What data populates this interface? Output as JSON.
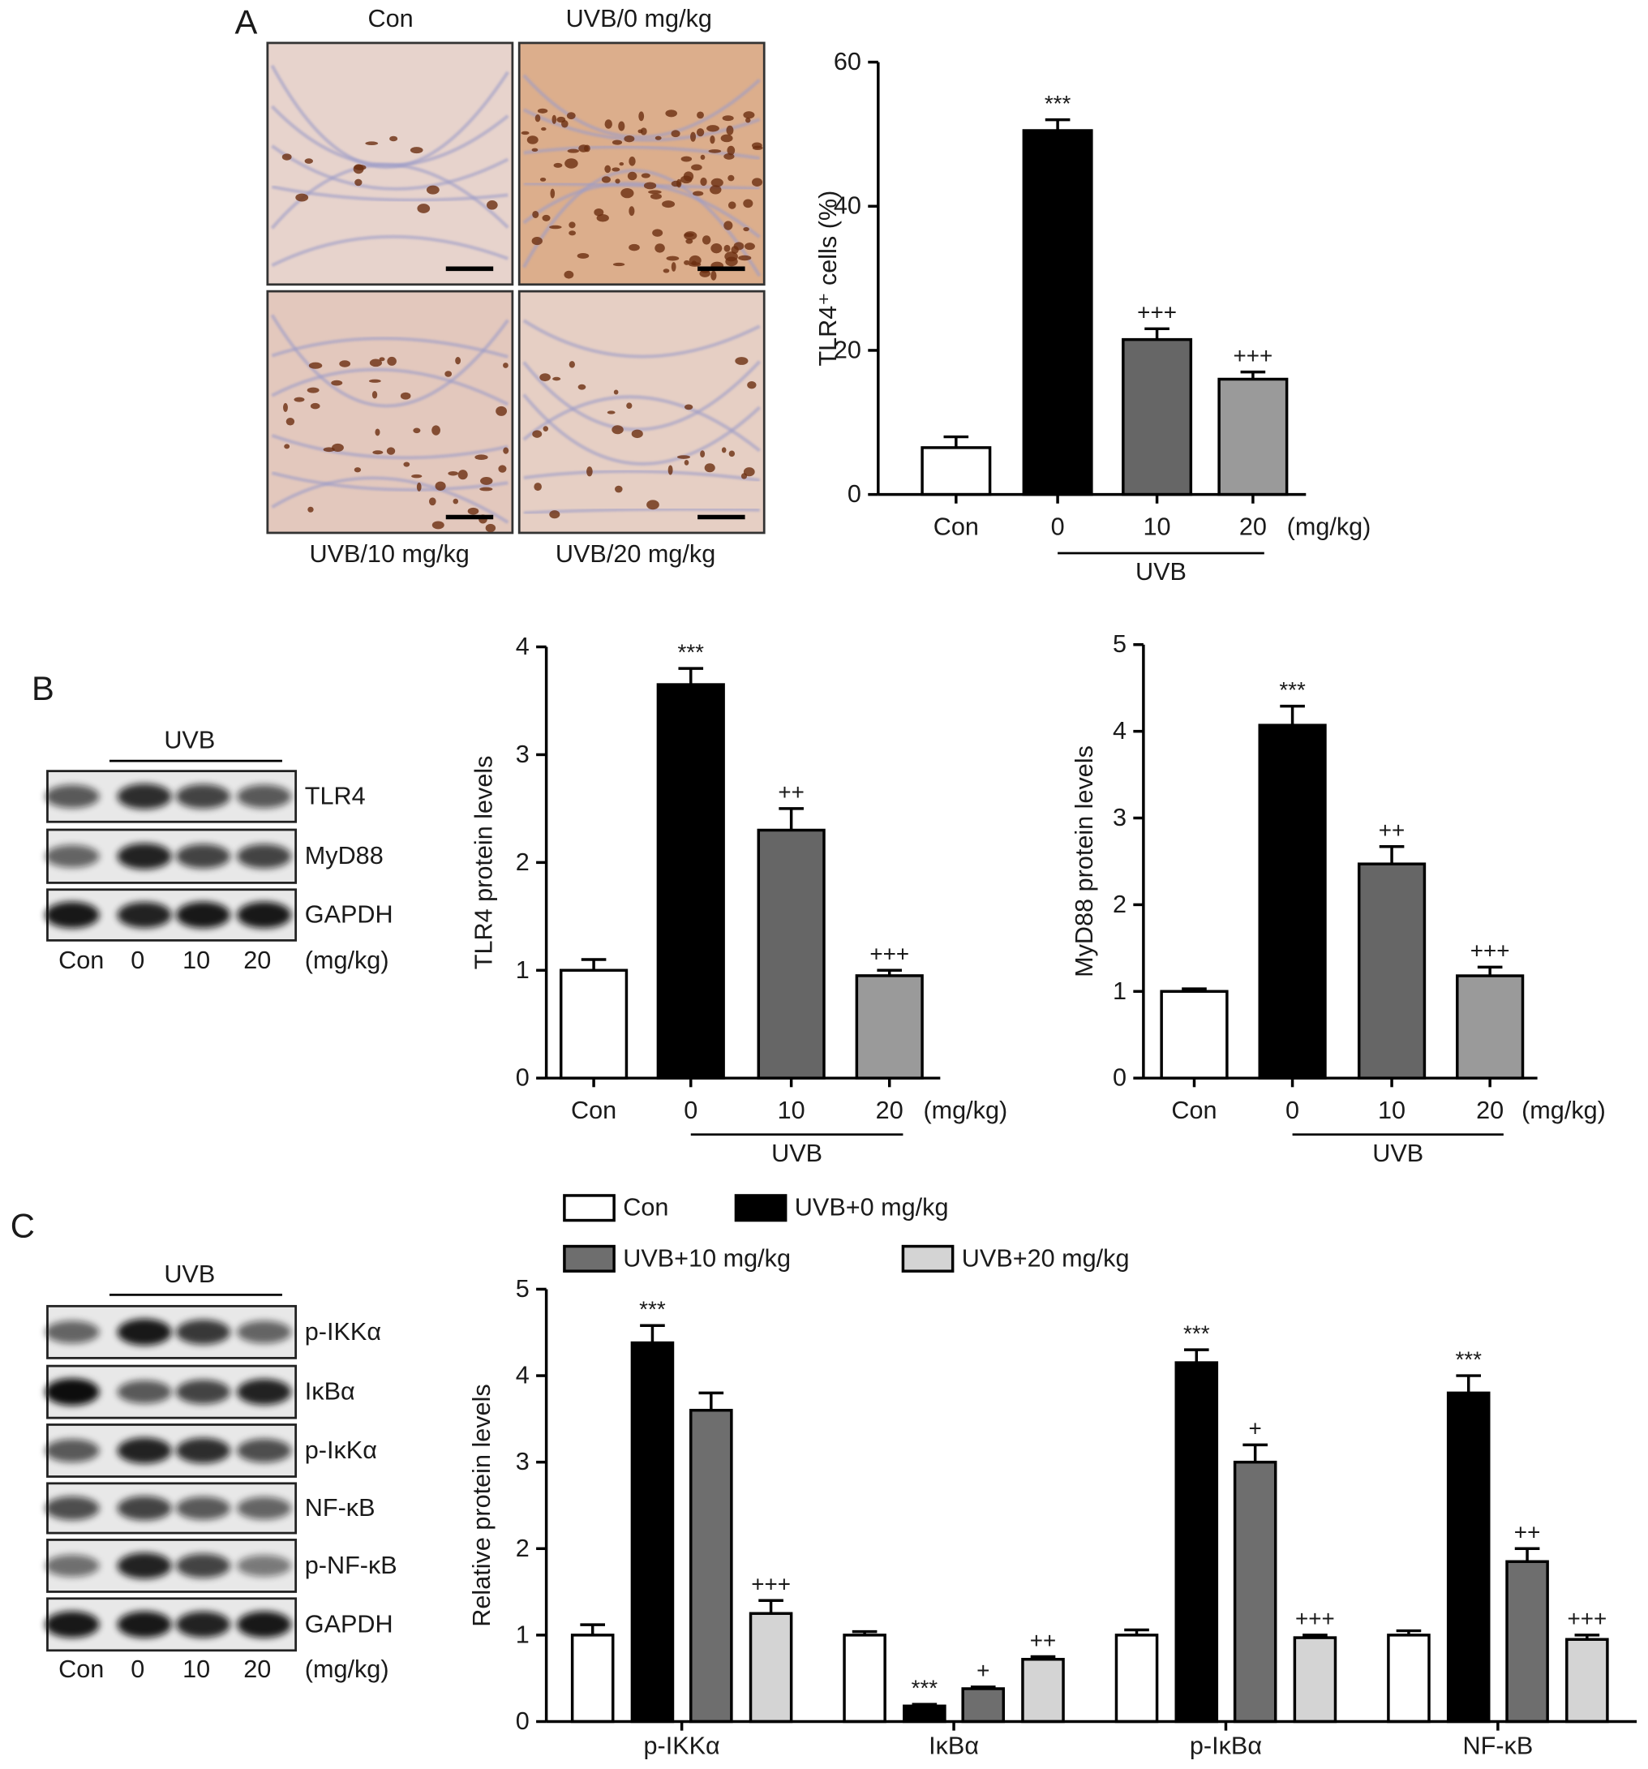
{
  "panel_labels": [
    "A",
    "B",
    "C"
  ],
  "micrographs": [
    "Con",
    "UVB/0 mg/kg",
    "UVB/10 mg/kg",
    "UVB/20 mg/kg"
  ],
  "blots": [
    {
      "group_label": "UVB",
      "lanes": [
        "Con",
        "0",
        "10",
        "20"
      ],
      "unit_label": "(mg/kg)",
      "bands": [
        "TLR4",
        "MyD88",
        "GAPDH"
      ]
    },
    {
      "group_label": "UVB",
      "lanes": [
        "Con",
        "0",
        "10",
        "20"
      ],
      "unit_label": "(mg/kg)",
      "bands": [
        "p-IKKα",
        "IκBα",
        "p-IκKα",
        "NF-κB",
        "p-NF-κB",
        "GAPDH"
      ]
    }
  ],
  "chart_data": [
    {
      "type": "bar",
      "ylabel": "TLR4⁺ cells (%)",
      "categories": [
        "Con",
        "0",
        "10",
        "20"
      ],
      "unit_label": "(mg/kg)",
      "group_label": "UVB",
      "values": [
        6.5,
        50.5,
        21.5,
        16
      ],
      "errors": [
        1.5,
        1.5,
        1.5,
        1
      ],
      "colors": [
        "#ffffff",
        "#000000",
        "#666666",
        "#9a9a9a"
      ],
      "annotations": [
        null,
        "***",
        "+++",
        "+++"
      ],
      "ylim": [
        0,
        60
      ],
      "yticks": [
        0,
        20,
        40,
        60
      ]
    },
    {
      "type": "bar",
      "ylabel": "TLR4 protein levels",
      "categories": [
        "Con",
        "0",
        "10",
        "20"
      ],
      "unit_label": "(mg/kg)",
      "group_label": "UVB",
      "values": [
        1.0,
        3.65,
        2.3,
        0.95
      ],
      "errors": [
        0.1,
        0.15,
        0.2,
        0.05
      ],
      "colors": [
        "#ffffff",
        "#000000",
        "#666666",
        "#9a9a9a"
      ],
      "annotations": [
        null,
        "***",
        "++",
        "+++"
      ],
      "ylim": [
        0,
        4
      ],
      "yticks": [
        0,
        1,
        2,
        3,
        4
      ]
    },
    {
      "type": "bar",
      "ylabel": "MyD88 protein levels",
      "categories": [
        "Con",
        "0",
        "10",
        "20"
      ],
      "unit_label": "(mg/kg)",
      "group_label": "UVB",
      "values": [
        1.0,
        4.07,
        2.47,
        1.18
      ],
      "errors": [
        0.03,
        0.22,
        0.2,
        0.1
      ],
      "colors": [
        "#ffffff",
        "#000000",
        "#666666",
        "#9a9a9a"
      ],
      "annotations": [
        null,
        "***",
        "++",
        "+++"
      ],
      "ylim": [
        0,
        5
      ],
      "yticks": [
        0,
        1,
        2,
        3,
        4,
        5
      ]
    },
    {
      "type": "grouped_bar",
      "ylabel": "Relative protein levels",
      "categories": [
        "p-IKKα",
        "IκBα",
        "p-IκBα",
        "NF-κB"
      ],
      "series": [
        {
          "name": "Con",
          "color": "#ffffff",
          "values": [
            1.0,
            1.0,
            1.0,
            1.0
          ],
          "errors": [
            0.12,
            0.04,
            0.06,
            0.05
          ],
          "annotations": [
            null,
            null,
            null,
            null
          ]
        },
        {
          "name": "UVB+0 mg/kg",
          "color": "#000000",
          "values": [
            4.38,
            0.18,
            4.15,
            3.8
          ],
          "errors": [
            0.2,
            0.02,
            0.15,
            0.2
          ],
          "annotations": [
            "***",
            "***",
            "***",
            "***"
          ]
        },
        {
          "name": "UVB+10 mg/kg",
          "color": "#6e6e6e",
          "values": [
            3.6,
            0.38,
            3.0,
            1.85
          ],
          "errors": [
            0.2,
            0.02,
            0.2,
            0.15
          ],
          "annotations": [
            null,
            "+",
            "+",
            "++"
          ]
        },
        {
          "name": "UVB+20 mg/kg",
          "color": "#d4d4d4",
          "values": [
            1.25,
            0.72,
            0.97,
            0.95
          ],
          "errors": [
            0.15,
            0.03,
            0.03,
            0.05
          ],
          "annotations": [
            "+++",
            "++",
            "+++",
            "+++"
          ]
        }
      ],
      "legend": true,
      "ylim": [
        0,
        5
      ],
      "yticks": [
        0,
        1,
        2,
        3,
        4,
        5
      ]
    }
  ]
}
